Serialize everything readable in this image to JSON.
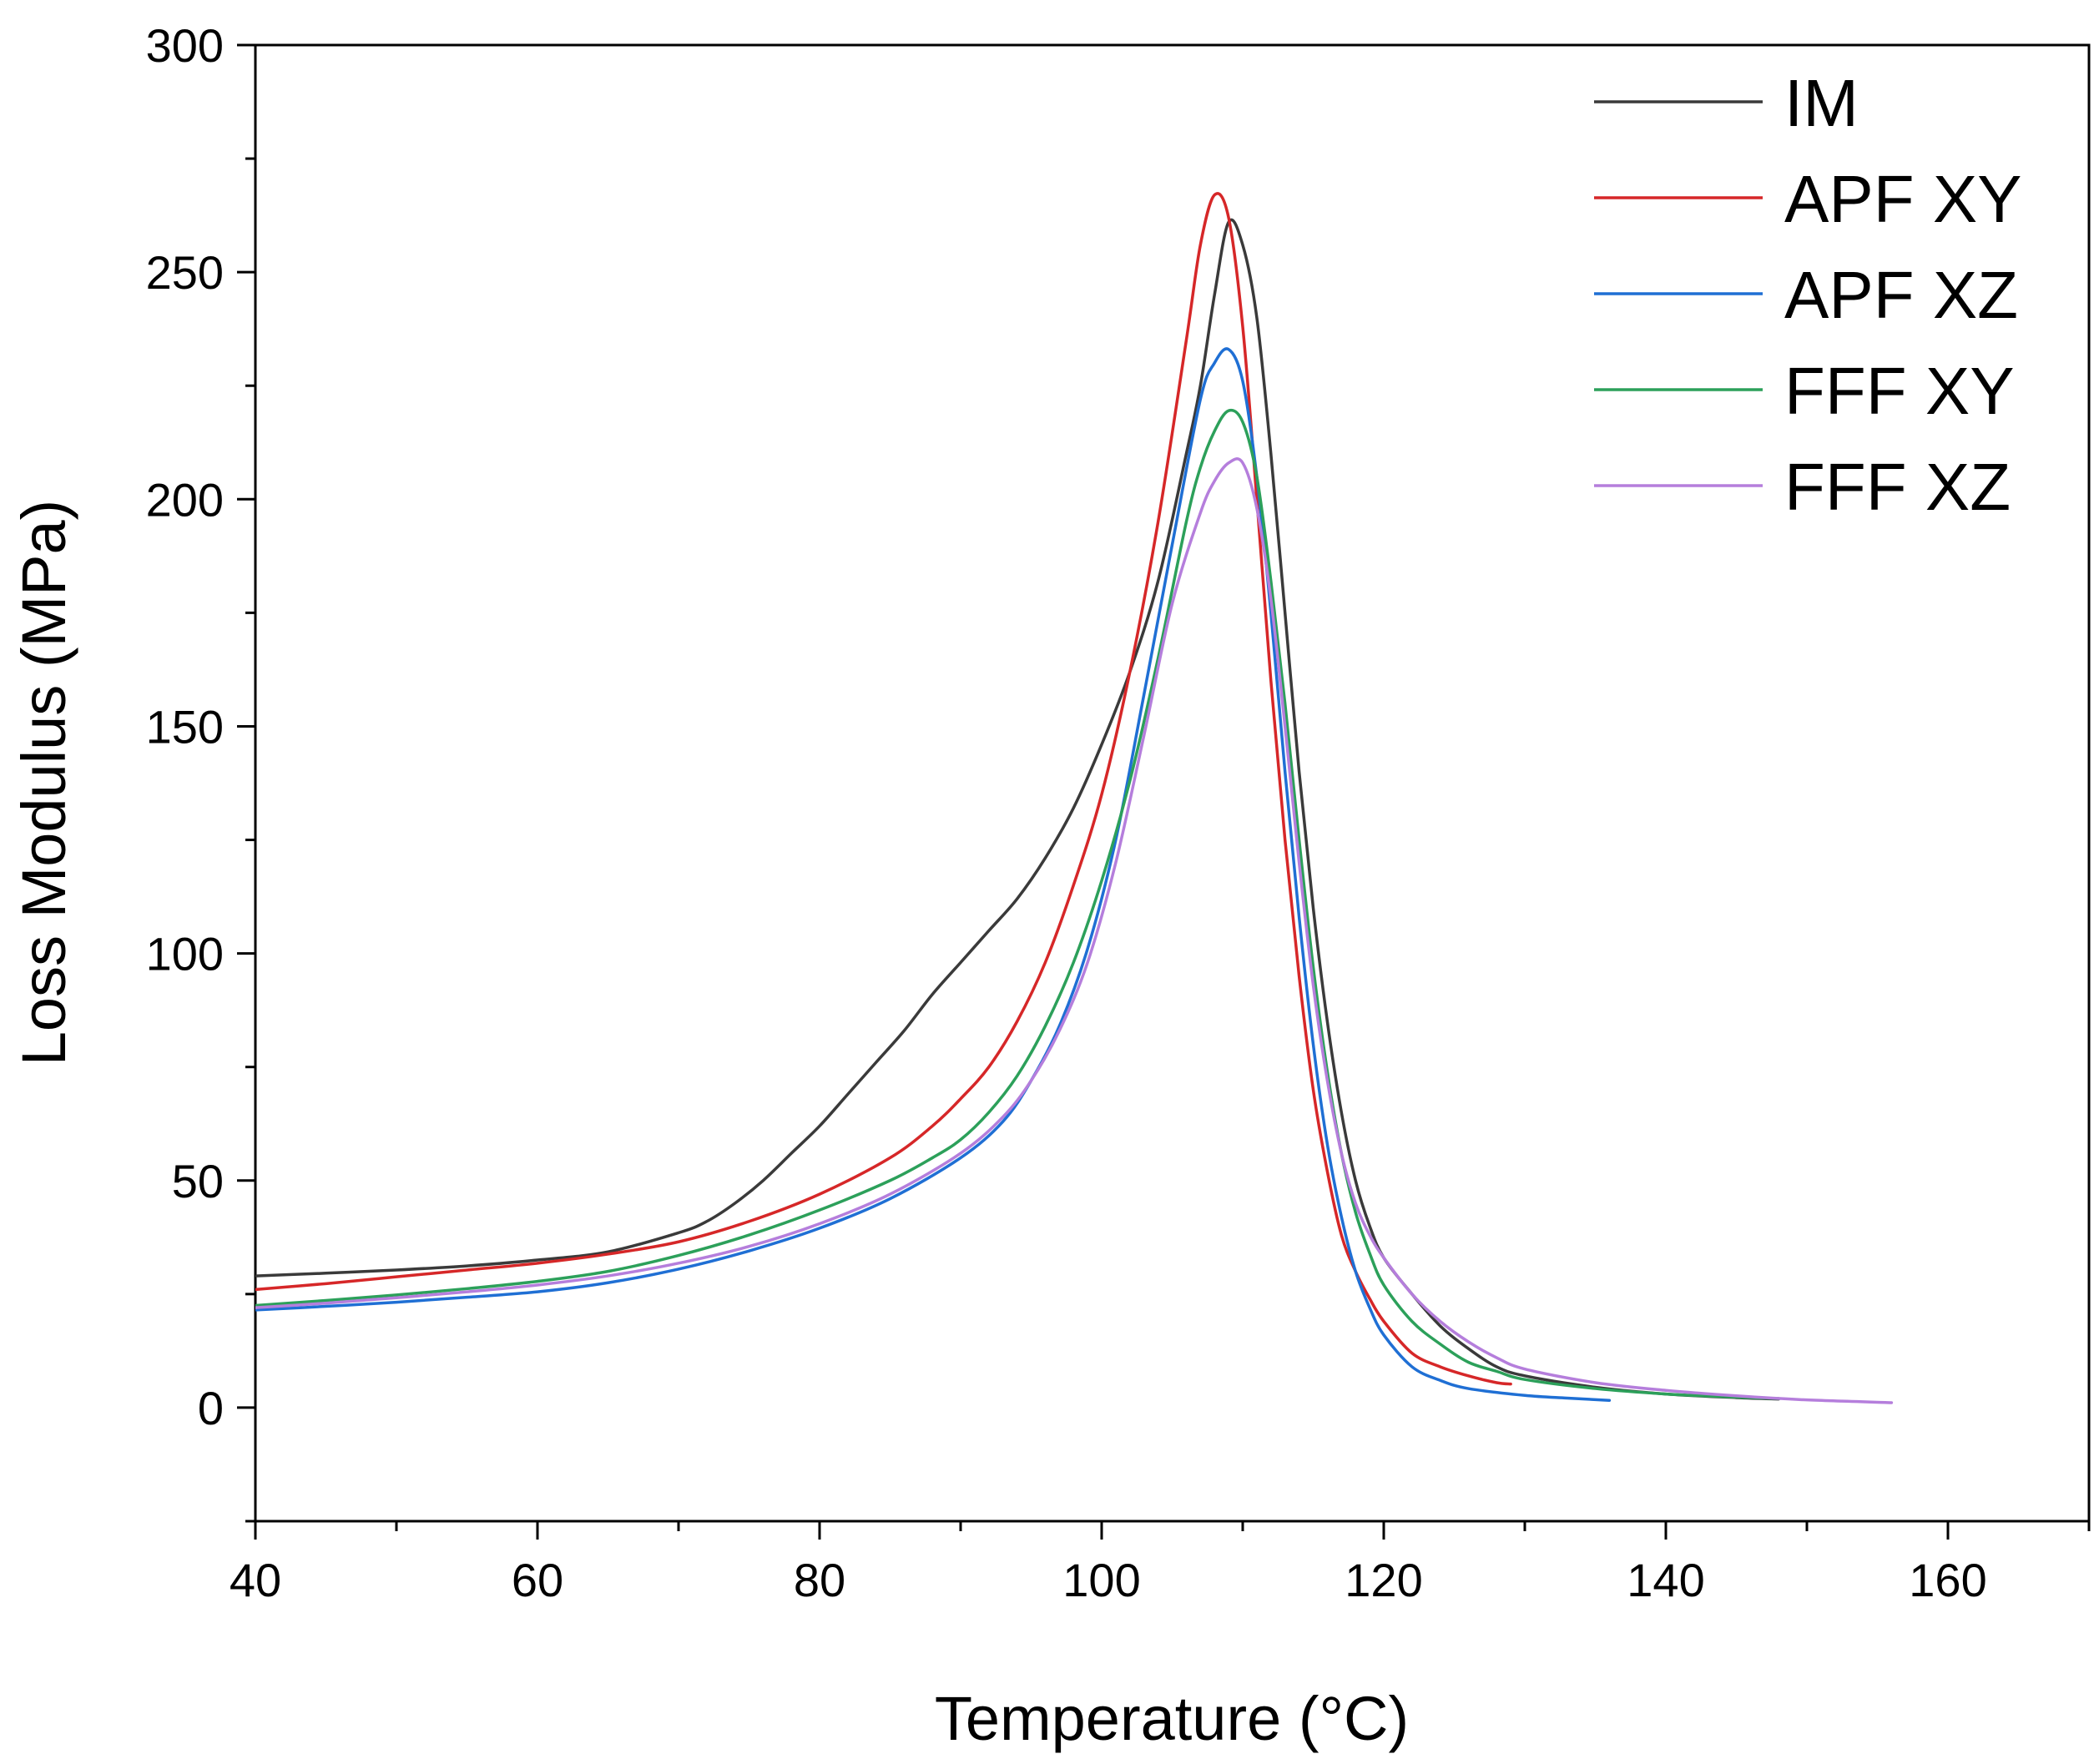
{
  "chart_data": {
    "type": "line",
    "title": "",
    "xlabel": "Temperature (°C)",
    "ylabel": "Loss Modulus (MPa)",
    "xlim": [
      40,
      170
    ],
    "ylim": [
      -25,
      300
    ],
    "xticks": [
      40,
      60,
      80,
      100,
      120,
      140,
      160
    ],
    "yticks": [
      0,
      50,
      100,
      150,
      200,
      250,
      300
    ],
    "x_minor_step": 10,
    "y_minor_step": 25,
    "legend_position": "top-right",
    "series": [
      {
        "name": "IM",
        "color": "#3a3a3a",
        "points": [
          [
            40,
            29
          ],
          [
            45,
            29.6
          ],
          [
            50,
            30.3
          ],
          [
            55,
            31.2
          ],
          [
            60,
            32.5
          ],
          [
            65,
            34.3
          ],
          [
            70,
            38.5
          ],
          [
            72,
            41
          ],
          [
            74,
            45
          ],
          [
            76,
            50
          ],
          [
            78,
            56
          ],
          [
            80,
            62
          ],
          [
            82,
            69
          ],
          [
            84,
            76
          ],
          [
            86,
            83
          ],
          [
            88,
            91
          ],
          [
            90,
            98
          ],
          [
            92,
            105
          ],
          [
            94,
            112
          ],
          [
            96,
            121
          ],
          [
            98,
            132
          ],
          [
            100,
            146
          ],
          [
            102,
            162
          ],
          [
            104,
            182
          ],
          [
            106,
            210
          ],
          [
            107,
            225
          ],
          [
            108,
            245
          ],
          [
            109,
            261
          ],
          [
            110,
            256
          ],
          [
            111,
            240
          ],
          [
            112,
            210
          ],
          [
            113,
            175
          ],
          [
            114,
            140
          ],
          [
            115,
            110
          ],
          [
            116,
            85
          ],
          [
            117,
            65
          ],
          [
            118,
            50
          ],
          [
            119,
            40
          ],
          [
            120,
            33
          ],
          [
            122,
            25
          ],
          [
            124,
            18
          ],
          [
            126,
            13
          ],
          [
            128,
            9
          ],
          [
            130,
            7
          ],
          [
            135,
            4.5
          ],
          [
            140,
            3
          ],
          [
            145,
            2.2
          ],
          [
            148,
            1.9
          ]
        ]
      },
      {
        "name": "APF XY",
        "color": "#d62728",
        "points": [
          [
            40,
            26
          ],
          [
            45,
            27.3
          ],
          [
            50,
            28.8
          ],
          [
            55,
            30.3
          ],
          [
            60,
            31.8
          ],
          [
            65,
            33.8
          ],
          [
            70,
            36.5
          ],
          [
            75,
            41
          ],
          [
            80,
            47
          ],
          [
            85,
            55
          ],
          [
            88,
            62
          ],
          [
            90,
            68
          ],
          [
            92,
            75
          ],
          [
            94,
            85
          ],
          [
            96,
            98
          ],
          [
            98,
            115
          ],
          [
            100,
            135
          ],
          [
            102,
            162
          ],
          [
            104,
            195
          ],
          [
            106,
            235
          ],
          [
            107,
            256
          ],
          [
            108,
            267
          ],
          [
            109,
            262
          ],
          [
            110,
            238
          ],
          [
            111,
            200
          ],
          [
            112,
            160
          ],
          [
            113,
            125
          ],
          [
            114,
            95
          ],
          [
            115,
            70
          ],
          [
            116,
            52
          ],
          [
            117,
            38
          ],
          [
            118,
            30
          ],
          [
            119,
            24
          ],
          [
            120,
            19
          ],
          [
            122,
            12
          ],
          [
            124,
            9
          ],
          [
            126,
            7
          ],
          [
            128,
            5.5
          ],
          [
            129,
            5.2
          ]
        ]
      },
      {
        "name": "APF XZ",
        "color": "#1f6fd4",
        "points": [
          [
            40,
            21.5
          ],
          [
            45,
            22.3
          ],
          [
            50,
            23.2
          ],
          [
            55,
            24.3
          ],
          [
            60,
            25.5
          ],
          [
            65,
            27.5
          ],
          [
            70,
            30.5
          ],
          [
            75,
            34.5
          ],
          [
            80,
            39.5
          ],
          [
            85,
            46
          ],
          [
            90,
            55
          ],
          [
            93,
            63
          ],
          [
            95,
            72
          ],
          [
            97,
            84
          ],
          [
            99,
            101
          ],
          [
            101,
            125
          ],
          [
            103,
            157
          ],
          [
            105,
            190
          ],
          [
            107,
            222
          ],
          [
            108,
            230
          ],
          [
            109,
            233
          ],
          [
            110,
            226
          ],
          [
            111,
            205
          ],
          [
            112,
            175
          ],
          [
            113,
            140
          ],
          [
            114,
            108
          ],
          [
            115,
            80
          ],
          [
            116,
            58
          ],
          [
            117,
            42
          ],
          [
            118,
            30
          ],
          [
            119,
            22
          ],
          [
            120,
            16
          ],
          [
            122,
            9
          ],
          [
            124,
            6
          ],
          [
            126,
            4.2
          ],
          [
            130,
            2.7
          ],
          [
            133,
            2.1
          ],
          [
            136,
            1.6
          ]
        ]
      },
      {
        "name": "FFF XY",
        "color": "#2ca05a",
        "points": [
          [
            40,
            22.5
          ],
          [
            45,
            23.6
          ],
          [
            50,
            24.8
          ],
          [
            55,
            26.2
          ],
          [
            60,
            27.8
          ],
          [
            65,
            30
          ],
          [
            70,
            33.5
          ],
          [
            75,
            38
          ],
          [
            80,
            43.5
          ],
          [
            85,
            50
          ],
          [
            88,
            55
          ],
          [
            90,
            59
          ],
          [
            92,
            65
          ],
          [
            94,
            73
          ],
          [
            96,
            84
          ],
          [
            98,
            98
          ],
          [
            100,
            116
          ],
          [
            102,
            138
          ],
          [
            104,
            165
          ],
          [
            106,
            195
          ],
          [
            107,
            207
          ],
          [
            108,
            215
          ],
          [
            109,
            219.5
          ],
          [
            110,
            217
          ],
          [
            111,
            205
          ],
          [
            112,
            182
          ],
          [
            113,
            155
          ],
          [
            114,
            125
          ],
          [
            115,
            97
          ],
          [
            116,
            74
          ],
          [
            117,
            56
          ],
          [
            118,
            43
          ],
          [
            119,
            34
          ],
          [
            120,
            27
          ],
          [
            122,
            19
          ],
          [
            124,
            14
          ],
          [
            126,
            10
          ],
          [
            128,
            8
          ],
          [
            130,
            6.2
          ],
          [
            135,
            4.2
          ],
          [
            140,
            3
          ],
          [
            145,
            2.3
          ],
          [
            148,
            2
          ]
        ]
      },
      {
        "name": "FFF XZ",
        "color": "#b57edc",
        "points": [
          [
            40,
            22
          ],
          [
            45,
            23
          ],
          [
            50,
            24.2
          ],
          [
            55,
            25.5
          ],
          [
            60,
            27
          ],
          [
            65,
            29
          ],
          [
            70,
            31.8
          ],
          [
            75,
            35.5
          ],
          [
            80,
            40.5
          ],
          [
            85,
            47
          ],
          [
            90,
            56
          ],
          [
            93,
            64
          ],
          [
            95,
            72
          ],
          [
            97,
            83
          ],
          [
            99,
            98
          ],
          [
            101,
            120
          ],
          [
            103,
            148
          ],
          [
            105,
            177
          ],
          [
            107,
            197
          ],
          [
            108,
            204
          ],
          [
            109,
            208
          ],
          [
            110,
            208
          ],
          [
            111,
            198
          ],
          [
            112,
            178
          ],
          [
            113,
            150
          ],
          [
            114,
            120
          ],
          [
            115,
            93
          ],
          [
            116,
            72
          ],
          [
            117,
            56
          ],
          [
            118,
            45
          ],
          [
            119,
            38
          ],
          [
            120,
            33
          ],
          [
            122,
            25
          ],
          [
            124,
            19
          ],
          [
            126,
            14.5
          ],
          [
            128,
            11
          ],
          [
            130,
            8.5
          ],
          [
            135,
            5.5
          ],
          [
            140,
            3.8
          ],
          [
            145,
            2.6
          ],
          [
            150,
            1.7
          ],
          [
            156,
            1.1
          ]
        ]
      }
    ]
  }
}
